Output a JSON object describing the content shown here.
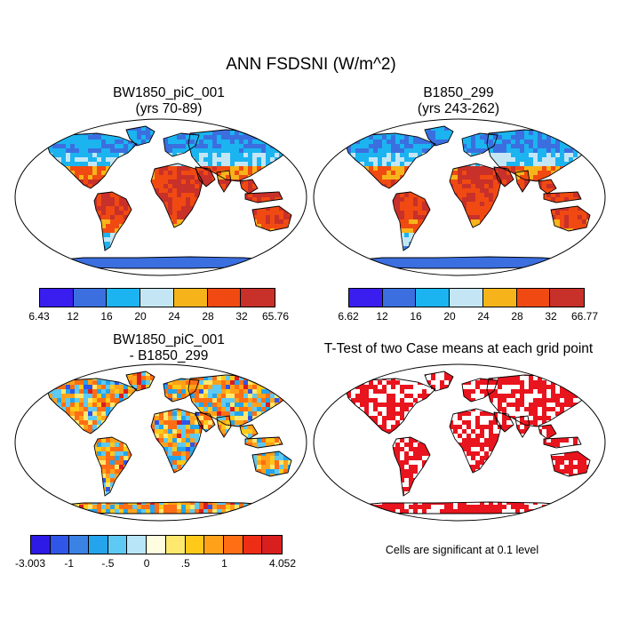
{
  "figure": {
    "title": "ANN FSDSNI (W/m^2)",
    "panels": [
      {
        "title": "BW1850_piC_001\n(yrs 70-89)"
      },
      {
        "title": "B1850_299\n(yrs 243-262)"
      },
      {
        "title": "BW1850_piC_001\n- B1850_299"
      },
      {
        "title": "T-Test of two Case means at each grid point"
      }
    ],
    "note": "Cells are significant at 0.1 level"
  },
  "colorbars": [
    {
      "colors": [
        "#3a1ef0",
        "#3b6fe0",
        "#1bb4f0",
        "#c4e6f4",
        "#f7b41a",
        "#f04a12",
        "#c8302a"
      ],
      "labels": [
        "6.43",
        "12",
        "16",
        "20",
        "24",
        "28",
        "32",
        "65.76"
      ]
    },
    {
      "colors": [
        "#3a1ef0",
        "#3b6fe0",
        "#1bb4f0",
        "#c4e6f4",
        "#f7b41a",
        "#f04a12",
        "#c8302a"
      ],
      "labels": [
        "6.62",
        "12",
        "16",
        "20",
        "24",
        "28",
        "32",
        "66.77"
      ]
    },
    {
      "colors": [
        "#2d1ae6",
        "#2f56e8",
        "#3a82e4",
        "#24a4ec",
        "#5ec9f2",
        "#b8e6f8",
        "#fffde0",
        "#ffe86e",
        "#ffc91a",
        "#ffa21a",
        "#ff6e14",
        "#ee2d16",
        "#d91e20"
      ],
      "labels": [
        "-3.003",
        "-1",
        "-.5",
        "0",
        ".5",
        "1",
        "4.052"
      ],
      "label_bounds": [
        0,
        2,
        4,
        6,
        8,
        10,
        13
      ]
    }
  ],
  "map_palettes": {
    "abs": {
      "desert": "#c8302a",
      "hot": "#f04a12",
      "warm": "#f7b41a",
      "mild": "#c4e6f4",
      "cool": "#1bb4f0",
      "cold": "#3b6fe0",
      "ice": "#3a1ef0"
    },
    "diff": {
      "pos": "#ff6e14",
      "pos2": "#ffa21a",
      "pos3": "#ffc91a",
      "pos4": "#ffe86e",
      "neg": "#5ec9f2",
      "neg2": "#24a4ec",
      "neg3": "#2f56e8",
      "strong": "#d91e20"
    },
    "sig": "#e8141e"
  }
}
